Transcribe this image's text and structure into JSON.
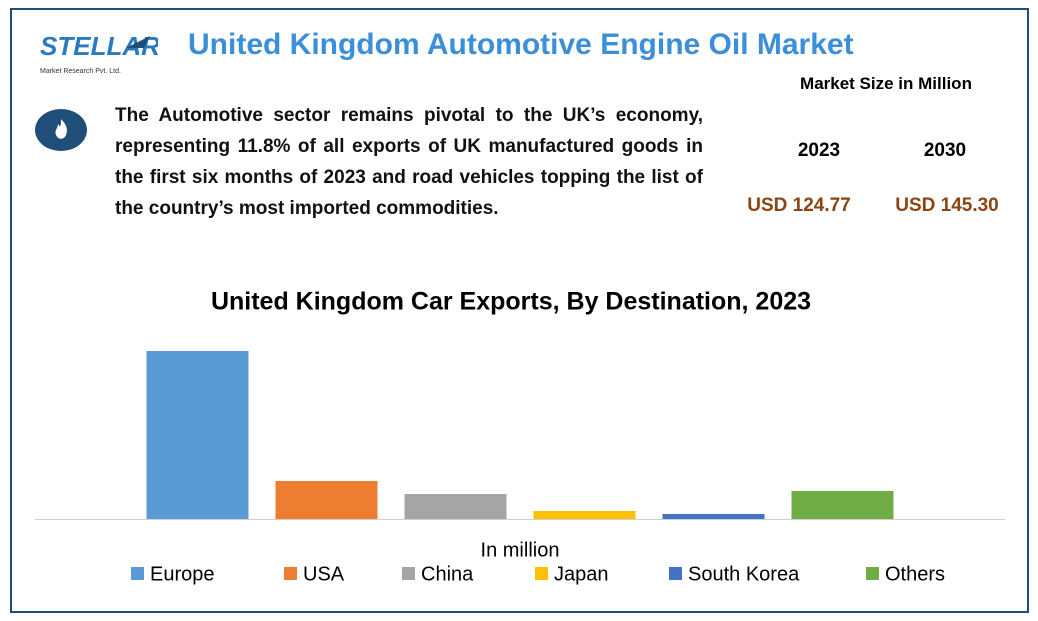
{
  "logo": {
    "name": "STELLAR",
    "tagline": "Market Research Pvt. Ltd."
  },
  "header": {
    "title": "United Kingdom Automotive Engine Oil Market"
  },
  "description": "The Automotive sector remains pivotal to the UK’s economy, representing 11.8% of all exports of UK manufactured goods in the first six months of 2023 and road vehicles topping the list of the country’s most imported commodities.",
  "market_size": {
    "heading": "Market Size in Million",
    "years": [
      "2023",
      "2030"
    ],
    "values": [
      "USD 124.77",
      "USD 145.30"
    ]
  },
  "chart_data": {
    "type": "bar",
    "title": "United Kingdom Car Exports, By Destination, 2023",
    "x_label": "In million",
    "categories": [
      "Europe",
      "USA",
      "China",
      "Japan",
      "South Korea",
      "Others"
    ],
    "values": [
      168,
      38,
      25,
      8,
      5,
      28
    ],
    "colors": [
      "#5b9bd5",
      "#ed7d31",
      "#a5a5a5",
      "#ffc000",
      "#4472c4",
      "#70ad47"
    ],
    "ylim": [
      0,
      180
    ]
  }
}
